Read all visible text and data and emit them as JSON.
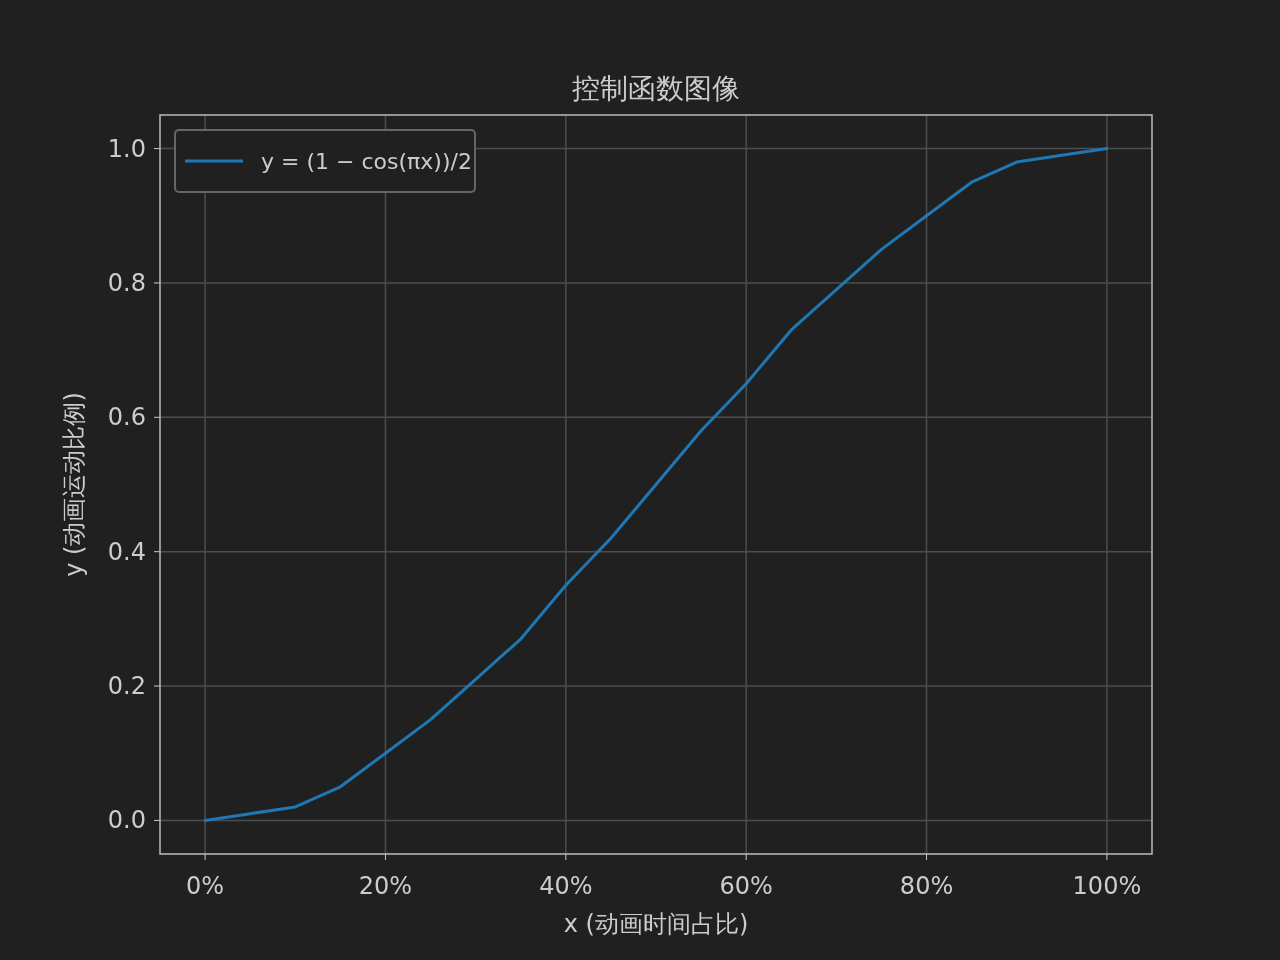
{
  "chart_data": {
    "type": "line",
    "title": "控制函数图像",
    "xlabel": "x (动画时间占比)",
    "ylabel": "y (动画运动比例)",
    "x": [
      0,
      0.05,
      0.1,
      0.15,
      0.2,
      0.25,
      0.3,
      0.35,
      0.4,
      0.45,
      0.5,
      0.55,
      0.6,
      0.65,
      0.7,
      0.75,
      0.8,
      0.85,
      0.9,
      0.95,
      1
    ],
    "series": [
      {
        "name": "y = (1 − cos(πx))/2",
        "color": "#1f77b4",
        "values": [
          0,
          0.01,
          0.02,
          0.05,
          0.1,
          0.15,
          0.21,
          0.27,
          0.35,
          0.42,
          0.5,
          0.58,
          0.65,
          0.73,
          0.79,
          0.85,
          0.9,
          0.95,
          0.98,
          0.99,
          1
        ]
      }
    ],
    "xlim": [
      -0.05,
      1.05
    ],
    "ylim": [
      -0.05,
      1.05
    ],
    "xticks": [
      {
        "value": 0,
        "label": "0%"
      },
      {
        "value": 0.2,
        "label": "20%"
      },
      {
        "value": 0.4,
        "label": "40%"
      },
      {
        "value": 0.6,
        "label": "60%"
      },
      {
        "value": 0.8,
        "label": "80%"
      },
      {
        "value": 1,
        "label": "100%"
      }
    ],
    "yticks": [
      {
        "value": 0,
        "label": "0.0"
      },
      {
        "value": 0.2,
        "label": "0.2"
      },
      {
        "value": 0.4,
        "label": "0.4"
      },
      {
        "value": 0.6,
        "label": "0.6"
      },
      {
        "value": 0.8,
        "label": "0.8"
      },
      {
        "value": 1,
        "label": "1.0"
      }
    ],
    "grid": true,
    "legend": "top left"
  }
}
